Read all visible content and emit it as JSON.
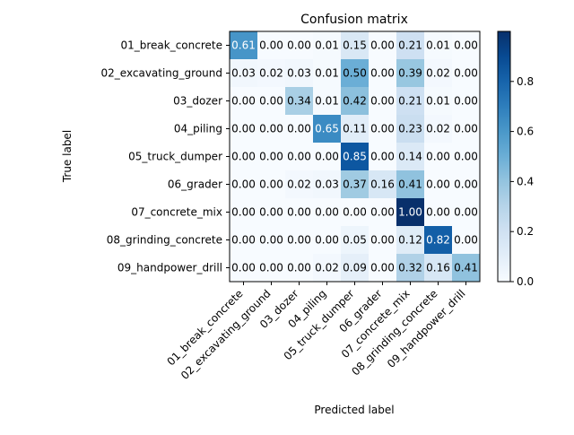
{
  "chart_data": {
    "type": "heatmap",
    "title": "Confusion matrix",
    "xlabel": "Predicted label",
    "ylabel": "True label",
    "categories": [
      "01_break_concrete",
      "02_excavating_ground",
      "03_dozer",
      "04_piling",
      "05_truck_dumper",
      "06_grader",
      "07_concrete_mix",
      "08_grinding_concrete",
      "09_handpower_drill"
    ],
    "values": [
      [
        0.61,
        0.0,
        0.0,
        0.01,
        0.15,
        0.0,
        0.21,
        0.01,
        0.0
      ],
      [
        0.03,
        0.02,
        0.03,
        0.01,
        0.5,
        0.0,
        0.39,
        0.02,
        0.0
      ],
      [
        0.0,
        0.0,
        0.34,
        0.01,
        0.42,
        0.0,
        0.21,
        0.01,
        0.0
      ],
      [
        0.0,
        0.0,
        0.0,
        0.65,
        0.11,
        0.0,
        0.23,
        0.02,
        0.0
      ],
      [
        0.0,
        0.0,
        0.0,
        0.0,
        0.85,
        0.0,
        0.14,
        0.0,
        0.0
      ],
      [
        0.0,
        0.0,
        0.02,
        0.03,
        0.37,
        0.16,
        0.41,
        0.0,
        0.0
      ],
      [
        0.0,
        0.0,
        0.0,
        0.0,
        0.0,
        0.0,
        1.0,
        0.0,
        0.0
      ],
      [
        0.0,
        0.0,
        0.0,
        0.0,
        0.05,
        0.0,
        0.12,
        0.82,
        0.0
      ],
      [
        0.0,
        0.0,
        0.0,
        0.02,
        0.09,
        0.0,
        0.32,
        0.16,
        0.41
      ]
    ],
    "colormap": "Blues",
    "colorbar": {
      "range": [
        0,
        1
      ],
      "ticks": [
        "0.0",
        "0.2",
        "0.4",
        "0.6",
        "0.8"
      ]
    },
    "colors": {
      "low": "#f7fbff",
      "high": "#08306b"
    },
    "grid": false,
    "legend": "colorbar-right"
  }
}
